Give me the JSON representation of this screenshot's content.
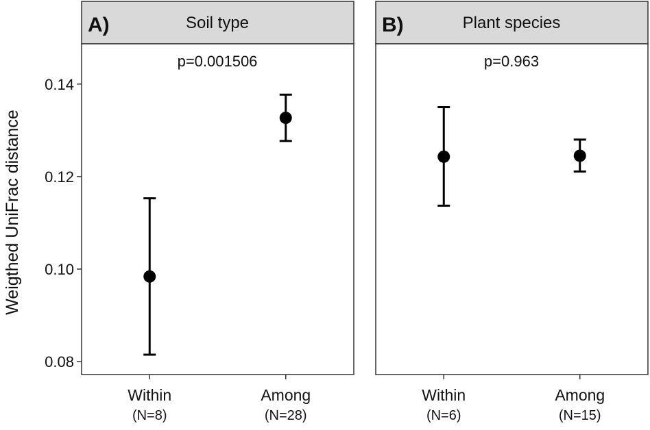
{
  "y_axis_label": "Weigthed UniFrac distance",
  "chart_data": [
    {
      "type": "scatter",
      "panel_tag": "A)",
      "strip_title": "Soil type",
      "annotation": "p=0.001506",
      "categories": [
        "Within",
        "Among"
      ],
      "category_counts": [
        "(N=8)",
        "(N=28)"
      ],
      "values": [
        0.0984,
        0.1327
      ],
      "error_low": [
        0.0815,
        0.1277
      ],
      "error_high": [
        0.1153,
        0.1377
      ],
      "ylim": [
        0.0772,
        0.1487
      ],
      "yticks": [
        0.08,
        0.1,
        0.12,
        0.14
      ],
      "ytick_labels": [
        "0.08",
        "0.10",
        "0.12",
        "0.14"
      ],
      "grid": false
    },
    {
      "type": "scatter",
      "panel_tag": "B)",
      "strip_title": "Plant species",
      "annotation": "p=0.963",
      "categories": [
        "Within",
        "Among"
      ],
      "category_counts": [
        "(N=6)",
        "(N=15)"
      ],
      "values": [
        0.1243,
        0.1245
      ],
      "error_low": [
        0.1137,
        0.1211
      ],
      "error_high": [
        0.135,
        0.128
      ],
      "ylim": [
        0.0772,
        0.1487
      ],
      "grid": false
    }
  ],
  "colors": {
    "strip_fill": "#d9d9d9",
    "frame": "#333333",
    "marks": "#000000"
  }
}
